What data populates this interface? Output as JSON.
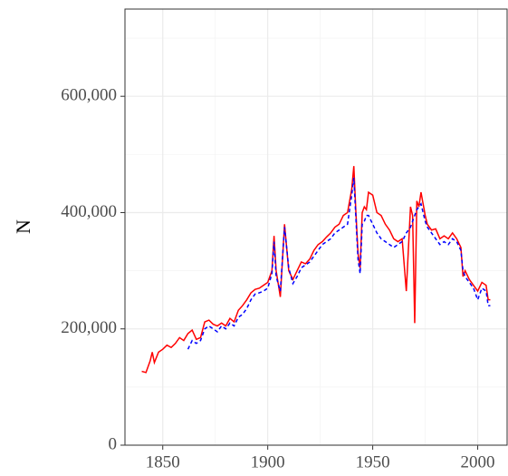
{
  "chart_data": {
    "type": "line",
    "ylabel": "N",
    "xlim": [
      1832,
      2014
    ],
    "ylim": [
      0,
      750000
    ],
    "xticks": [
      1850,
      1900,
      1950,
      2000
    ],
    "yticks": [
      0,
      {
        "value": 200000,
        "label": "200,000"
      },
      {
        "value": 400000,
        "label": "400,000"
      },
      {
        "value": 600000,
        "label": "600,000"
      }
    ],
    "x_minor_grid": [
      1875,
      1925,
      1975
    ],
    "y_minor_grid": [
      100000,
      300000,
      500000,
      700000
    ],
    "grid": true,
    "x": [
      1840,
      1842,
      1844,
      1845,
      1846,
      1848,
      1850,
      1852,
      1854,
      1856,
      1858,
      1860,
      1862,
      1864,
      1866,
      1868,
      1870,
      1872,
      1874,
      1876,
      1878,
      1880,
      1882,
      1884,
      1886,
      1888,
      1890,
      1892,
      1894,
      1896,
      1898,
      1900,
      1902,
      1903,
      1904,
      1906,
      1908,
      1910,
      1912,
      1914,
      1916,
      1918,
      1920,
      1922,
      1924,
      1926,
      1928,
      1930,
      1932,
      1934,
      1936,
      1938,
      1940,
      1941,
      1942,
      1943,
      1944,
      1945,
      1946,
      1947,
      1948,
      1950,
      1952,
      1954,
      1956,
      1958,
      1960,
      1962,
      1964,
      1966,
      1968,
      1969,
      1970,
      1971,
      1972,
      1973,
      1974,
      1975,
      1976,
      1978,
      1980,
      1982,
      1984,
      1986,
      1988,
      1990,
      1992,
      1993,
      1994,
      1996,
      1998,
      2000,
      2002,
      2004,
      2005,
      2006
    ],
    "series": [
      {
        "color": "#ff0000",
        "dashed": false,
        "values": [
          127000,
          125000,
          145000,
          160000,
          142000,
          160000,
          165000,
          172000,
          168000,
          175000,
          185000,
          180000,
          192000,
          198000,
          182000,
          185000,
          212000,
          215000,
          208000,
          205000,
          210000,
          205000,
          218000,
          212000,
          232000,
          240000,
          250000,
          262000,
          268000,
          270000,
          275000,
          280000,
          300000,
          360000,
          300000,
          255000,
          380000,
          300000,
          285000,
          300000,
          315000,
          312000,
          320000,
          335000,
          345000,
          350000,
          358000,
          365000,
          375000,
          380000,
          395000,
          400000,
          440000,
          480000,
          400000,
          330000,
          305000,
          400000,
          410000,
          405000,
          435000,
          430000,
          400000,
          395000,
          380000,
          370000,
          355000,
          350000,
          355000,
          265000,
          410000,
          395000,
          210000,
          420000,
          410000,
          435000,
          415000,
          395000,
          380000,
          370000,
          372000,
          355000,
          360000,
          355000,
          365000,
          355000,
          340000,
          290000,
          300000,
          285000,
          275000,
          265000,
          280000,
          275000,
          250000,
          250000
        ]
      },
      {
        "color": "#0000ff",
        "dashed": true,
        "values": [
          null,
          null,
          null,
          null,
          null,
          null,
          null,
          null,
          null,
          null,
          null,
          null,
          165000,
          180000,
          175000,
          180000,
          200000,
          205000,
          200000,
          195000,
          205000,
          200000,
          210000,
          205000,
          220000,
          225000,
          235000,
          250000,
          260000,
          262000,
          265000,
          270000,
          295000,
          350000,
          290000,
          265000,
          375000,
          305000,
          278000,
          290000,
          305000,
          310000,
          315000,
          325000,
          335000,
          345000,
          350000,
          355000,
          365000,
          370000,
          375000,
          380000,
          430000,
          460000,
          390000,
          320000,
          295000,
          380000,
          385000,
          395000,
          395000,
          380000,
          365000,
          355000,
          350000,
          345000,
          340000,
          345000,
          350000,
          365000,
          375000,
          385000,
          395000,
          405000,
          410000,
          415000,
          400000,
          385000,
          375000,
          365000,
          355000,
          345000,
          350000,
          345000,
          355000,
          350000,
          335000,
          300000,
          290000,
          280000,
          270000,
          250000,
          270000,
          265000,
          240000,
          240000
        ]
      }
    ]
  }
}
